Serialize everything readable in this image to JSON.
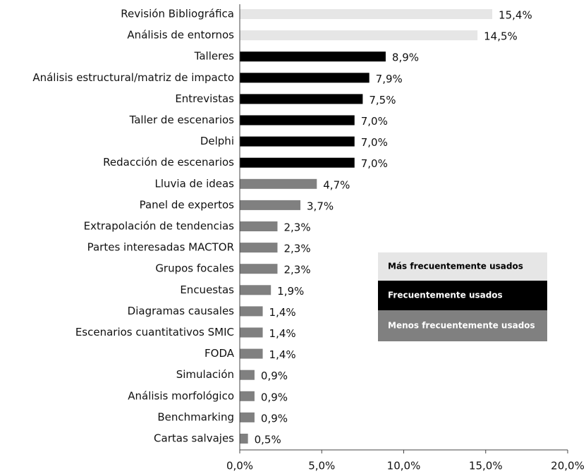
{
  "chart_data": {
    "type": "bar",
    "orientation": "horizontal",
    "categories": [
      "Revisión Bibliográfica",
      "Análisis de entornos",
      "Talleres",
      "Análisis estructural/matriz de impacto",
      "Entrevistas",
      "Taller de escenarios",
      "Delphi",
      "Redacción de escenarios",
      "Lluvia de ideas",
      "Panel de expertos",
      "Extrapolación de tendencias",
      "Partes interesadas  MACTOR",
      "Grupos focales",
      "Encuestas",
      "Diagramas causales",
      "Escenarios cuantitativos SMIC",
      "FODA",
      "Simulación",
      "Análisis morfológico",
      "Benchmarking",
      "Cartas salvajes"
    ],
    "values": [
      15.4,
      14.5,
      8.9,
      7.9,
      7.5,
      7.0,
      7.0,
      7.0,
      4.7,
      3.7,
      2.3,
      2.3,
      2.3,
      1.9,
      1.4,
      1.4,
      1.4,
      0.9,
      0.9,
      0.9,
      0.5
    ],
    "value_labels": [
      "15,4%",
      "14,5%",
      "8,9%",
      "7,9%",
      "7,5%",
      "7,0%",
      "7,0%",
      "7,0%",
      "4,7%",
      "3,7%",
      "2,3%",
      "2,3%",
      "2,3%",
      "1,9%",
      "1,4%",
      "1,4%",
      "1,4%",
      "0,9%",
      "0,9%",
      "0,9%",
      "0,5%"
    ],
    "colors": [
      "#e6e6e6",
      "#e6e6e6",
      "#000000",
      "#000000",
      "#000000",
      "#000000",
      "#000000",
      "#000000",
      "#808080",
      "#808080",
      "#808080",
      "#808080",
      "#808080",
      "#808080",
      "#808080",
      "#808080",
      "#808080",
      "#808080",
      "#808080",
      "#808080",
      "#808080"
    ],
    "legend": [
      {
        "name": "Más frecuentemente usados",
        "color": "#e6e6e6",
        "text_color": "#000000"
      },
      {
        "name": "Frecuentemente usados",
        "color": "#000000",
        "text_color": "#ffffff"
      },
      {
        "name": "Menos frecuentemente usados",
        "color": "#808080",
        "text_color": "#ffffff"
      }
    ],
    "xlim": [
      0,
      20
    ],
    "xticks": [
      {
        "value": 0,
        "label": "0,0%"
      },
      {
        "value": 5,
        "label": "5,0%"
      },
      {
        "value": 10,
        "label": "10,0%"
      },
      {
        "value": 15,
        "label": "15,0%"
      },
      {
        "value": 20,
        "label": "20,0%"
      }
    ]
  }
}
